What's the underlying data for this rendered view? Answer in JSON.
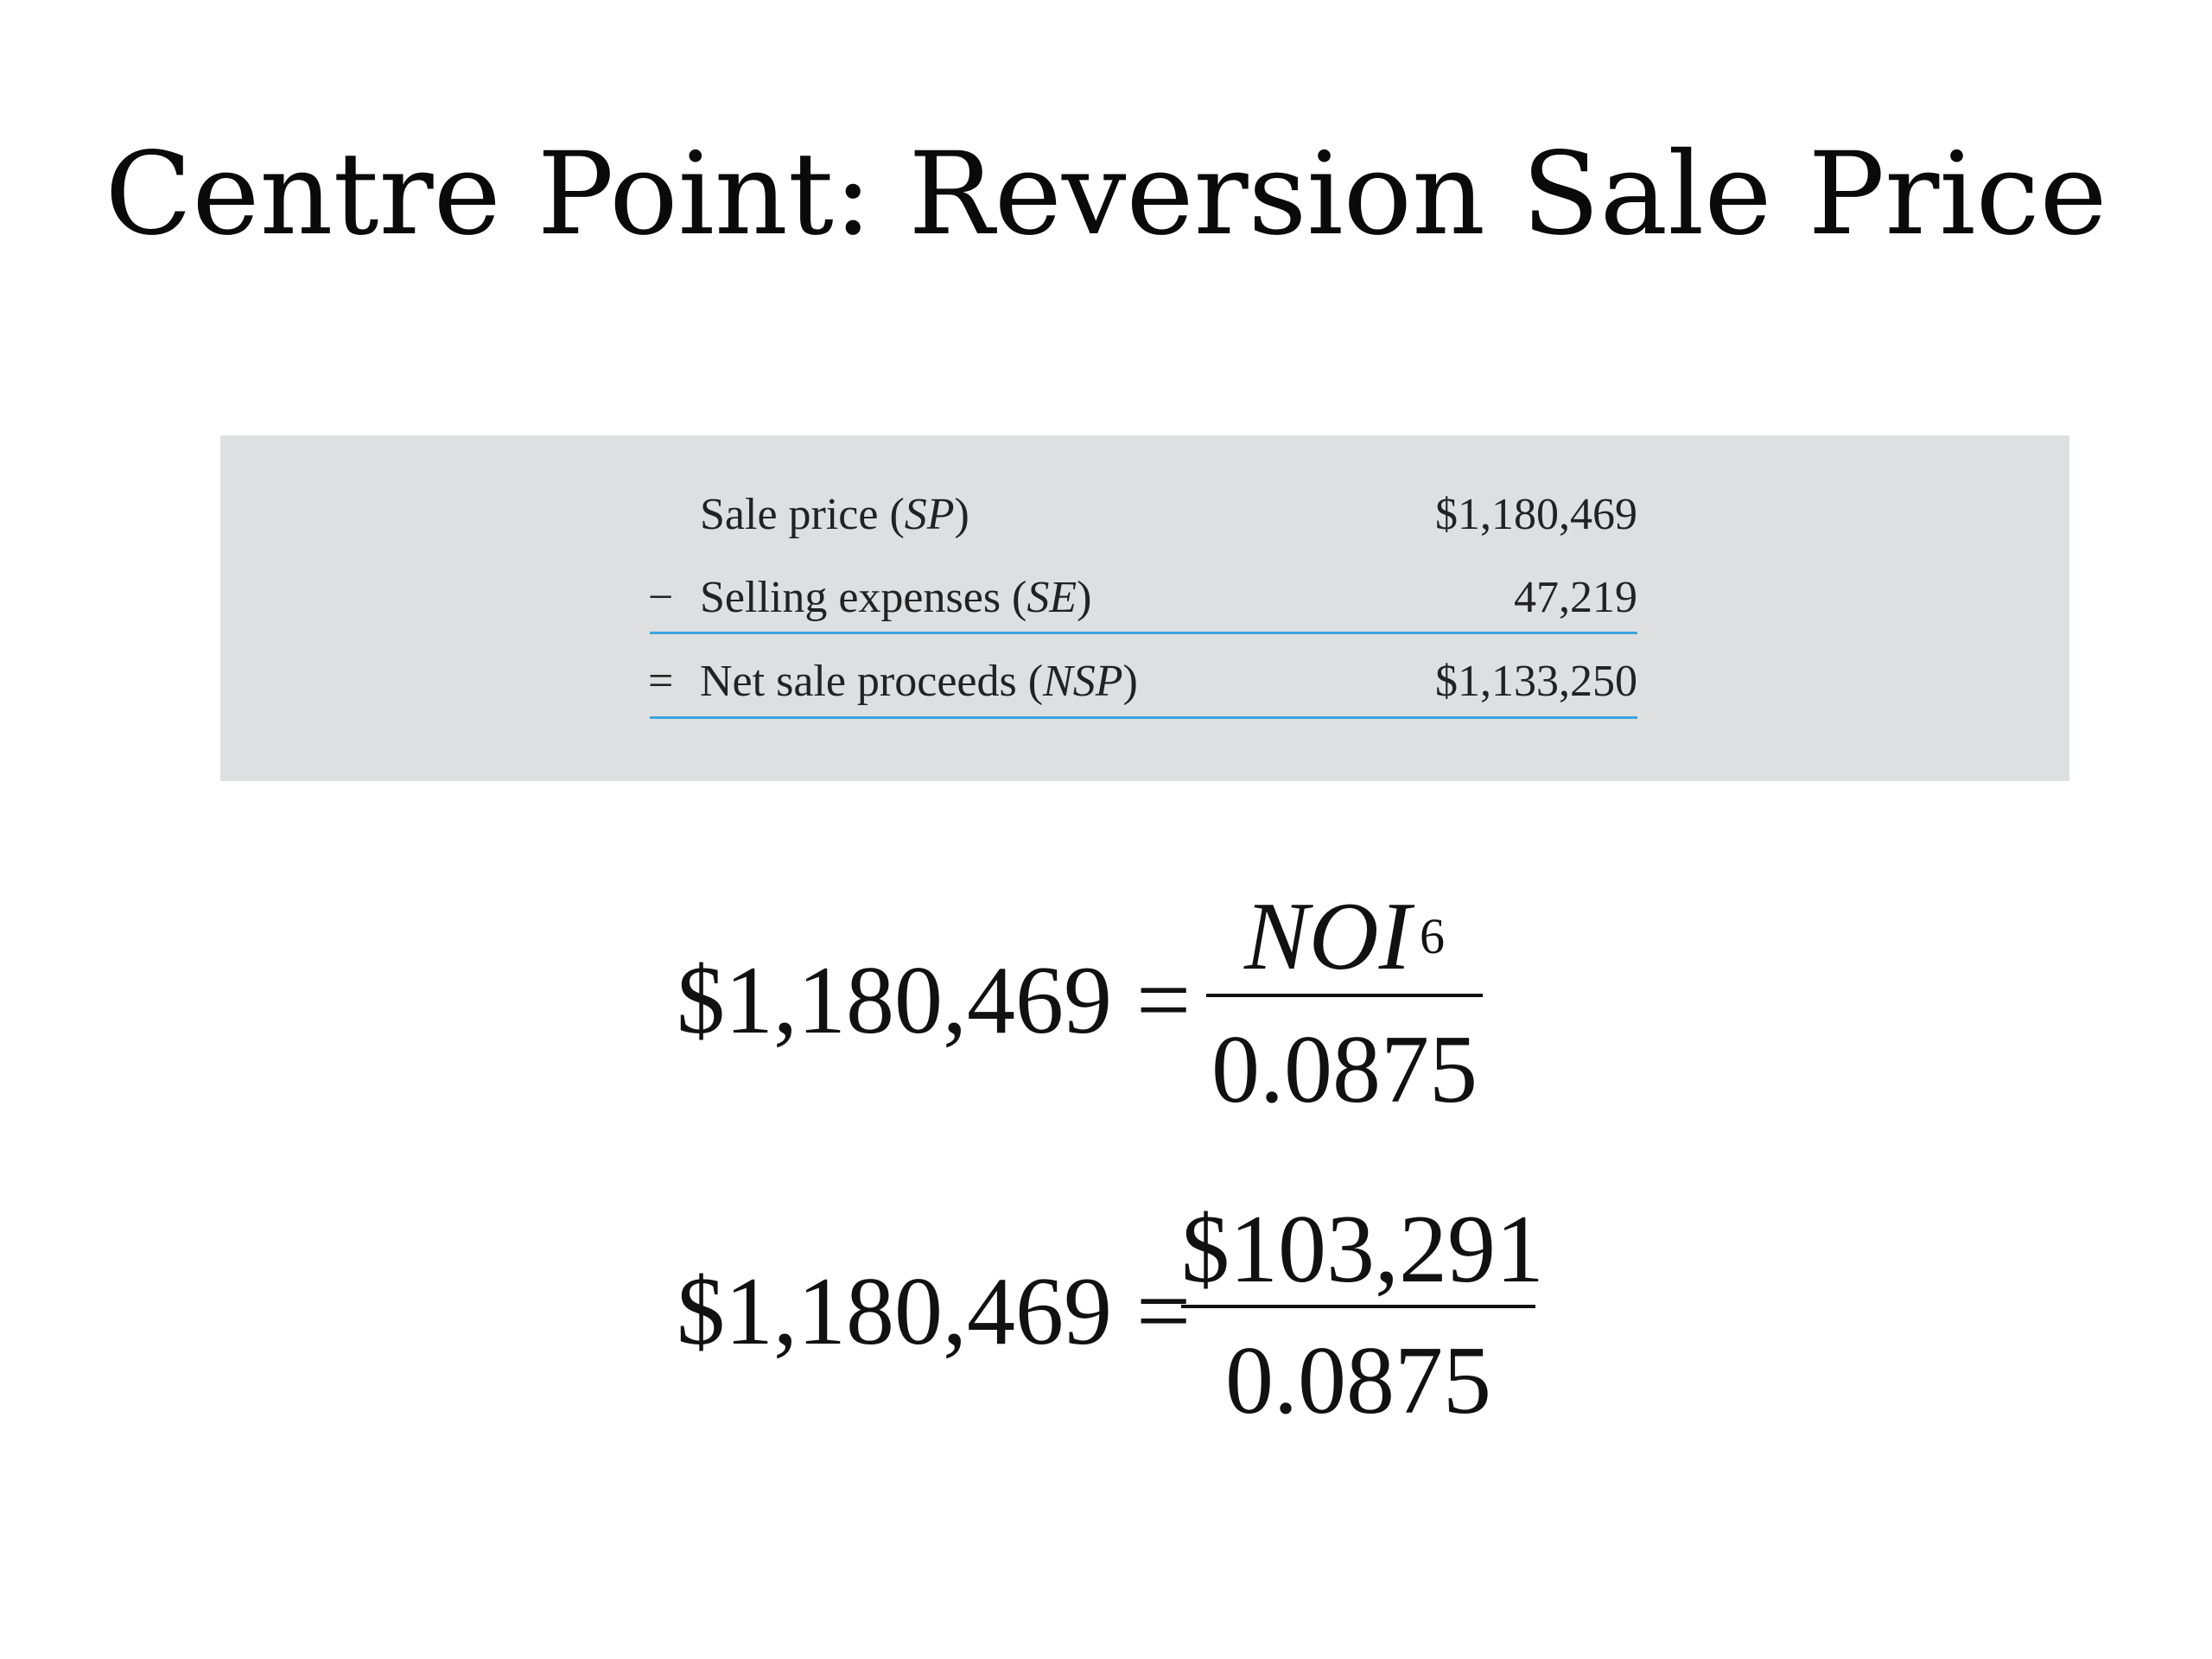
{
  "title": "Centre Point: Reversion Sale Price",
  "table": {
    "rows": [
      {
        "operator": "",
        "label": "Sale price (",
        "abbr": "SP",
        "label_end": ")",
        "amount": "$1,180,469"
      },
      {
        "operator": "−",
        "label": "Selling expenses (",
        "abbr": "SE",
        "label_end": ")",
        "amount": "47,219"
      },
      {
        "operator": "=",
        "label": "Net sale proceeds (",
        "abbr": "NSP",
        "label_end": ")",
        "amount": "$1,133,250"
      }
    ]
  },
  "equations": [
    {
      "lhs": "$1,180,469 =",
      "numerator": "NOI",
      "numerator_sub": "6",
      "denominator": "0.0875"
    },
    {
      "lhs": "$1,180,469 =",
      "numerator": "$103,291",
      "numerator_sub": "",
      "denominator": "0.0875"
    }
  ]
}
